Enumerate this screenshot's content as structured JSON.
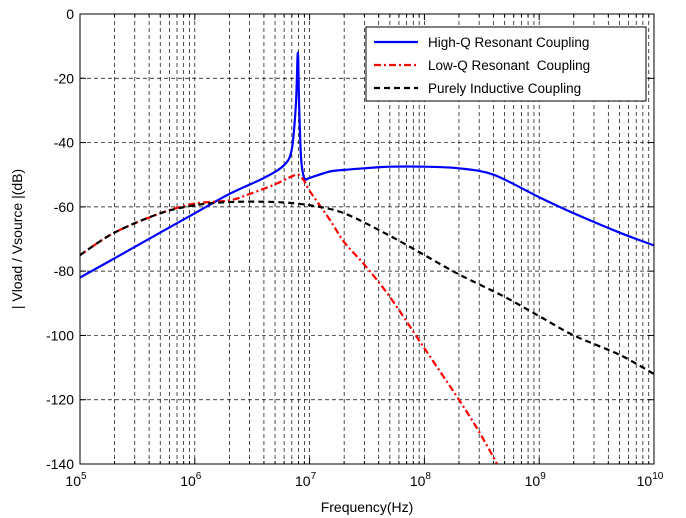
{
  "chart_data": {
    "type": "line",
    "title": "",
    "xlabel": "Frequency(Hz)",
    "ylabel": "| Vload / Vsource |(dB)",
    "x_scale": "log",
    "xlim": [
      100000,
      10000000000
    ],
    "ylim": [
      -140,
      0
    ],
    "x_tick_labels": [
      {
        "base": "10",
        "exp": "5"
      },
      {
        "base": "10",
        "exp": "6"
      },
      {
        "base": "10",
        "exp": "7"
      },
      {
        "base": "10",
        "exp": "8"
      },
      {
        "base": "10",
        "exp": "9"
      },
      {
        "base": "10",
        "exp": "10"
      }
    ],
    "y_ticks": [
      0,
      -20,
      -40,
      -60,
      -80,
      -100,
      -120,
      -140
    ],
    "y_tick_labels": [
      "0",
      "-20",
      "-40",
      "-60",
      "-80",
      "-100",
      "-120",
      "-140"
    ],
    "grid": "dashed, major and minor on x",
    "legend_position": "top-right",
    "series": [
      {
        "name": "High-Q Resonant Coupling",
        "color": "#0000ff",
        "dash": "solid",
        "x": [
          100000,
          200000,
          500000,
          1000000,
          2000000,
          4000000,
          6000000,
          7000000,
          7600000,
          7900000,
          8100000,
          8400000,
          8800000,
          9300000,
          10000000,
          15000000,
          20000000,
          30000000,
          50000000,
          100000000,
          200000000,
          400000000,
          1000000000,
          2000000000,
          5000000000,
          10000000000
        ],
        "y": [
          -82,
          -76,
          -68,
          -62,
          -56,
          -51,
          -47,
          -42,
          -28,
          -12,
          -28,
          -44,
          -50,
          -51.5,
          -51,
          -49,
          -48.5,
          -48,
          -47.5,
          -47.5,
          -48,
          -50,
          -57,
          -62,
          -68,
          -72
        ]
      },
      {
        "name": "Low-Q Resonant  Coupling",
        "color": "#ff0000",
        "dash": "dashdot",
        "x": [
          100000,
          200000,
          500000,
          1000000,
          2000000,
          3000000,
          5000000,
          7000000,
          8000000,
          9000000,
          10000000,
          15000000,
          20000000,
          30000000,
          50000000,
          100000000,
          200000000,
          300000000,
          430000000
        ],
        "y": [
          -75,
          -68,
          -62,
          -59,
          -58,
          -56,
          -53,
          -50.5,
          -50,
          -52,
          -55,
          -64,
          -71,
          -78,
          -88,
          -104,
          -120,
          -130,
          -140
        ]
      },
      {
        "name": "Purely Inductive Coupling",
        "color": "#000000",
        "dash": "dashed",
        "x": [
          100000,
          200000,
          500000,
          1000000,
          2000000,
          5000000,
          10000000,
          20000000,
          50000000,
          100000000,
          200000000,
          500000000,
          1000000000,
          2000000000,
          5000000000,
          10000000000
        ],
        "y": [
          -75,
          -68,
          -62,
          -59.5,
          -58.5,
          -58.5,
          -59.5,
          -62,
          -69,
          -75,
          -81,
          -88,
          -94,
          -100,
          -106,
          -112
        ]
      }
    ]
  }
}
